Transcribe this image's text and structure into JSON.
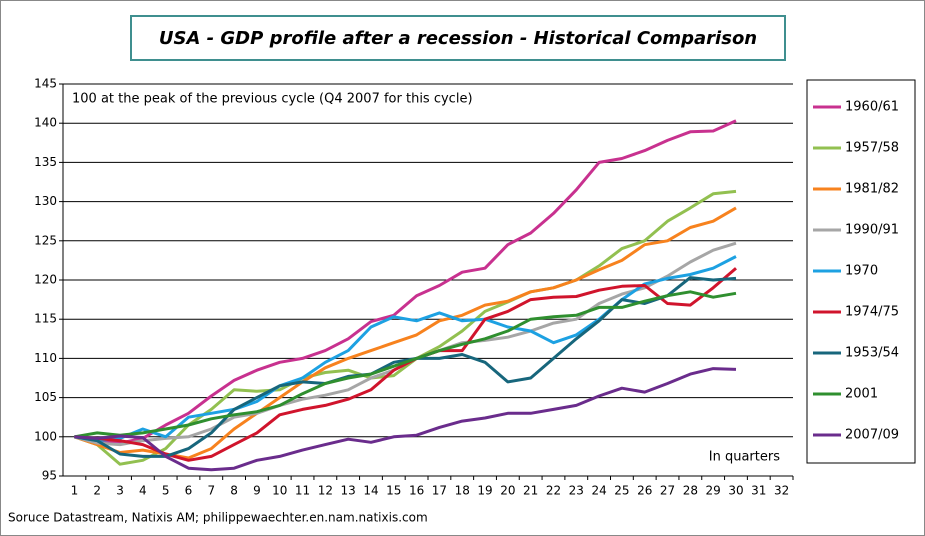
{
  "chart_data": {
    "type": "line",
    "title": "USA - GDP profile after a recession - Historical Comparison",
    "subtitle": "100 at the peak of the previous cycle (Q4 2007 for this cycle)",
    "x_label": "In quarters",
    "source": "Soruce Datastream, Natixis AM; philippewaechter.en.nam.natixis.com",
    "categories": [
      1,
      2,
      3,
      4,
      5,
      6,
      7,
      8,
      9,
      10,
      11,
      12,
      13,
      14,
      15,
      16,
      17,
      18,
      19,
      20,
      21,
      22,
      23,
      24,
      25,
      26,
      27,
      28,
      29,
      30,
      31,
      32
    ],
    "ylim": [
      95,
      145
    ],
    "yticks": [
      95,
      100,
      105,
      110,
      115,
      120,
      125,
      130,
      135,
      140,
      145
    ],
    "grid": true,
    "legend": "right",
    "series": [
      {
        "name": "1960/61",
        "color": "#c8318f",
        "values": [
          100,
          99.5,
          99.2,
          99.8,
          101.5,
          103,
          105.2,
          107.2,
          108.5,
          109.5,
          110,
          111,
          112.5,
          114.7,
          115.5,
          118,
          119.3,
          121,
          121.5,
          124.5,
          126,
          128.5,
          131.5,
          135,
          135.5,
          136.5,
          137.8,
          138.9,
          139,
          140.3,
          null,
          null
        ]
      },
      {
        "name": "1957/58",
        "color": "#92c050",
        "values": [
          100,
          99,
          96.5,
          97,
          98.5,
          101.5,
          103.5,
          106,
          105.8,
          106,
          107.5,
          108.2,
          108.5,
          107.5,
          107.8,
          110,
          111.5,
          113.5,
          116,
          117.2,
          118.5,
          119,
          120,
          121.8,
          124,
          125,
          127.5,
          129.2,
          131,
          131.3,
          null,
          null
        ]
      },
      {
        "name": "1981/82",
        "color": "#f7821e",
        "values": [
          100,
          99,
          98,
          98.3,
          97.8,
          97.3,
          98.5,
          101,
          103,
          105,
          107,
          108.8,
          110,
          111,
          112,
          113,
          114.8,
          115.5,
          116.8,
          117.3,
          118.5,
          119,
          120,
          121.3,
          122.5,
          124.5,
          125,
          126.7,
          127.5,
          129.2,
          null,
          null
        ]
      },
      {
        "name": "1990/91",
        "color": "#a6a6a6",
        "values": [
          100,
          99.2,
          99,
          99.5,
          99.8,
          100,
          101,
          102.5,
          103,
          104,
          104.8,
          105.3,
          106,
          107.5,
          108.5,
          110,
          111,
          112,
          112.3,
          112.7,
          113.5,
          114.5,
          115,
          117,
          118.2,
          119,
          120.5,
          122.3,
          123.8,
          124.7,
          null,
          null
        ]
      },
      {
        "name": "1970",
        "color": "#1da1e2",
        "values": [
          100,
          99.5,
          99.8,
          101,
          100,
          102.5,
          103,
          103.5,
          104.5,
          106.5,
          107.5,
          109.5,
          111,
          114,
          115.3,
          114.8,
          115.8,
          114.8,
          115,
          114,
          113.5,
          112,
          113,
          115,
          117.5,
          119.5,
          120.2,
          120.7,
          121.5,
          123,
          null,
          null
        ]
      },
      {
        "name": "1974/75",
        "color": "#d0142c",
        "values": [
          100,
          99.8,
          99.5,
          99,
          97.8,
          97,
          97.5,
          99,
          100.5,
          102.8,
          103.5,
          104,
          104.8,
          106,
          108.5,
          110,
          111,
          111,
          115,
          116,
          117.5,
          117.8,
          117.9,
          118.7,
          119.2,
          119.3,
          117,
          116.8,
          119,
          121.5,
          null,
          null
        ]
      },
      {
        "name": "1953/54",
        "color": "#17667c",
        "values": [
          100,
          99.5,
          97.8,
          97.5,
          97.5,
          98.5,
          100.5,
          103.5,
          105,
          106.5,
          107,
          106.8,
          107.7,
          108,
          109.5,
          110,
          110,
          110.5,
          109.5,
          107,
          107.5,
          110,
          112.5,
          114.8,
          117.5,
          117,
          118,
          120.3,
          120,
          120.2,
          null,
          null
        ]
      },
      {
        "name": "2001",
        "color": "#2f8f2f",
        "values": [
          100,
          100.5,
          100.2,
          100.5,
          101,
          101.5,
          102.3,
          102.8,
          103.2,
          104,
          105.5,
          106.8,
          107.5,
          108,
          109,
          110,
          111,
          111.8,
          112.5,
          113.5,
          115,
          115.3,
          115.5,
          116.5,
          116.5,
          117.3,
          118,
          118.5,
          117.8,
          118.3,
          null,
          null
        ]
      },
      {
        "name": "2007/09",
        "color": "#6a2c8c",
        "values": [
          100,
          99.8,
          100.1,
          99.9,
          97.5,
          96,
          95.8,
          96,
          97,
          97.5,
          98.3,
          99,
          99.7,
          99.3,
          100,
          100.2,
          101.2,
          102,
          102.4,
          103,
          103,
          103.5,
          104,
          105.2,
          106.2,
          105.7,
          106.8,
          108,
          108.7,
          108.6,
          null,
          null
        ]
      }
    ]
  }
}
